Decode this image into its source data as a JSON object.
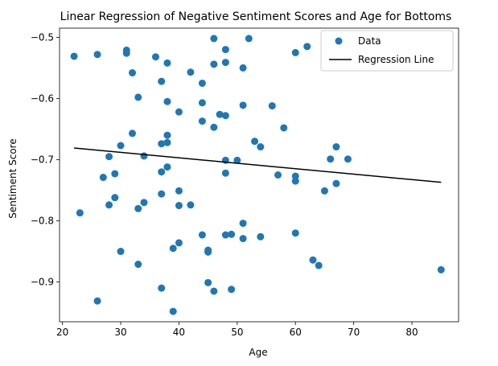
{
  "chart_data": {
    "type": "scatter",
    "title": "Linear Regression of Negative Sentiment Scores and Age for Bottoms",
    "xlabel": "Age",
    "ylabel": "Sentiment Score",
    "xlim": [
      19.5,
      88
    ],
    "ylim": [
      -0.965,
      -0.485
    ],
    "xticks": [
      20,
      30,
      40,
      50,
      60,
      70,
      80
    ],
    "yticks": [
      -0.9,
      -0.8,
      -0.7,
      -0.6,
      -0.5
    ],
    "ytick_labels": [
      "−0.9",
      "−0.8",
      "−0.7",
      "−0.6",
      "−0.5"
    ],
    "legend_position": "top-right",
    "series": [
      {
        "name": "Data",
        "color": "#1f77b4",
        "marker": "circle",
        "points": [
          [
            22,
            -0.531
          ],
          [
            23,
            -0.787
          ],
          [
            26,
            -0.528
          ],
          [
            26,
            -0.931
          ],
          [
            27,
            -0.729
          ],
          [
            28,
            -0.695
          ],
          [
            28,
            -0.774
          ],
          [
            29,
            -0.723
          ],
          [
            29,
            -0.762
          ],
          [
            30,
            -0.677
          ],
          [
            30,
            -0.85
          ],
          [
            31,
            -0.521
          ],
          [
            31,
            -0.526
          ],
          [
            32,
            -0.558
          ],
          [
            32,
            -0.657
          ],
          [
            33,
            -0.598
          ],
          [
            33,
            -0.78
          ],
          [
            33,
            -0.871
          ],
          [
            34,
            -0.694
          ],
          [
            34,
            -0.77
          ],
          [
            36,
            -0.532
          ],
          [
            37,
            -0.572
          ],
          [
            37,
            -0.674
          ],
          [
            37,
            -0.72
          ],
          [
            37,
            -0.756
          ],
          [
            37,
            -0.91
          ],
          [
            38,
            -0.542
          ],
          [
            38,
            -0.605
          ],
          [
            38,
            -0.66
          ],
          [
            38,
            -0.672
          ],
          [
            38,
            -0.712
          ],
          [
            39,
            -0.845
          ],
          [
            39,
            -0.948
          ],
          [
            40,
            -0.622
          ],
          [
            40,
            -0.751
          ],
          [
            40,
            -0.775
          ],
          [
            40,
            -0.836
          ],
          [
            42,
            -0.557
          ],
          [
            42,
            -0.774
          ],
          [
            44,
            -0.575
          ],
          [
            44,
            -0.607
          ],
          [
            44,
            -0.637
          ],
          [
            44,
            -0.823
          ],
          [
            45,
            -0.848
          ],
          [
            45,
            -0.851
          ],
          [
            45,
            -0.901
          ],
          [
            46,
            -0.502
          ],
          [
            46,
            -0.544
          ],
          [
            46,
            -0.647
          ],
          [
            46,
            -0.915
          ],
          [
            47,
            -0.626
          ],
          [
            48,
            -0.52
          ],
          [
            48,
            -0.541
          ],
          [
            48,
            -0.628
          ],
          [
            48,
            -0.701
          ],
          [
            48,
            -0.722
          ],
          [
            48,
            -0.823
          ],
          [
            49,
            -0.822
          ],
          [
            49,
            -0.912
          ],
          [
            50,
            -0.701
          ],
          [
            51,
            -0.55
          ],
          [
            51,
            -0.611
          ],
          [
            51,
            -0.804
          ],
          [
            51,
            -0.829
          ],
          [
            52,
            -0.502
          ],
          [
            53,
            -0.67
          ],
          [
            54,
            -0.679
          ],
          [
            54,
            -0.826
          ],
          [
            56,
            -0.612
          ],
          [
            57,
            -0.725
          ],
          [
            58,
            -0.648
          ],
          [
            60,
            -0.525
          ],
          [
            60,
            -0.727
          ],
          [
            60,
            -0.735
          ],
          [
            60,
            -0.82
          ],
          [
            62,
            -0.515
          ],
          [
            63,
            -0.864
          ],
          [
            64,
            -0.873
          ],
          [
            65,
            -0.751
          ],
          [
            66,
            -0.699
          ],
          [
            67,
            -0.679
          ],
          [
            67,
            -0.739
          ],
          [
            69,
            -0.699
          ],
          [
            85,
            -0.88
          ]
        ]
      },
      {
        "name": "Regression Line",
        "color": "#000000",
        "type": "line",
        "points": [
          [
            22,
            -0.681
          ],
          [
            85,
            -0.737
          ]
        ]
      }
    ]
  }
}
